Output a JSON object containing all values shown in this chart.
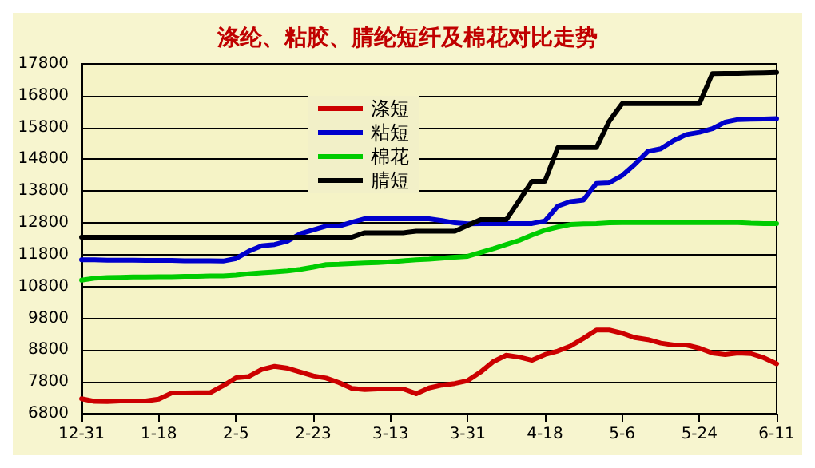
{
  "chart_data": {
    "type": "line",
    "title": "涤纶、粘胶、腈纶短纤及棉花对比走势",
    "categories": [
      "12-31",
      null,
      null,
      null,
      null,
      null,
      "1-18",
      null,
      null,
      null,
      null,
      null,
      "2-5",
      null,
      null,
      null,
      null,
      null,
      "2-23",
      null,
      null,
      null,
      null,
      null,
      "3-13",
      null,
      null,
      null,
      null,
      null,
      "3-31",
      null,
      null,
      null,
      null,
      null,
      "4-18",
      null,
      null,
      null,
      null,
      null,
      "5-6",
      null,
      null,
      null,
      null,
      null,
      "5-24",
      null,
      null,
      null,
      null,
      null,
      "6-11"
    ],
    "ylim": [
      6800,
      17800
    ],
    "yticks": [
      6800,
      7800,
      8800,
      9800,
      10800,
      11800,
      12800,
      13800,
      14800,
      15800,
      16800,
      17800
    ],
    "grid": "y",
    "legend": "top left",
    "marker": "none",
    "line_style": "solid",
    "series": [
      {
        "name": "涤短",
        "color": "#cc0000",
        "values": [
          7270,
          7190,
          7180,
          7200,
          7200,
          7200,
          7260,
          7450,
          7450,
          7460,
          7460,
          7680,
          7930,
          7970,
          8190,
          8290,
          8230,
          8110,
          7990,
          7920,
          7780,
          7600,
          7560,
          7580,
          7580,
          7580,
          7430,
          7610,
          7700,
          7750,
          7840,
          8110,
          8440,
          8640,
          8580,
          8480,
          8660,
          8770,
          8930,
          9170,
          9430,
          9430,
          9330,
          9190,
          9130,
          9020,
          8960,
          8960,
          8860,
          8710,
          8660,
          8710,
          8690,
          8560,
          8370
        ]
      },
      {
        "name": "粘短",
        "color": "#0000cc",
        "values": [
          11640,
          11640,
          11630,
          11630,
          11630,
          11620,
          11620,
          11620,
          11610,
          11610,
          11610,
          11600,
          11680,
          11910,
          12080,
          12120,
          12230,
          12460,
          12580,
          12700,
          12700,
          12820,
          12930,
          12930,
          12930,
          12930,
          12930,
          12930,
          12870,
          12800,
          12770,
          12780,
          12780,
          12780,
          12780,
          12780,
          12860,
          13330,
          13470,
          13520,
          14040,
          14060,
          14290,
          14650,
          15050,
          15130,
          15390,
          15580,
          15650,
          15760,
          15970,
          16050,
          16060,
          16070,
          16080
        ]
      },
      {
        "name": "棉花",
        "color": "#00cc00",
        "values": [
          11000,
          11060,
          11080,
          11090,
          11100,
          11100,
          11110,
          11110,
          11120,
          11120,
          11130,
          11130,
          11160,
          11200,
          11230,
          11260,
          11290,
          11340,
          11410,
          11490,
          11500,
          11520,
          11540,
          11550,
          11580,
          11610,
          11640,
          11660,
          11690,
          11720,
          11750,
          11870,
          11990,
          12120,
          12250,
          12420,
          12570,
          12670,
          12750,
          12770,
          12780,
          12800,
          12810,
          12810,
          12810,
          12810,
          12810,
          12810,
          12810,
          12810,
          12810,
          12810,
          12790,
          12780,
          12780
        ]
      },
      {
        "name": "腈短",
        "color": "#000000",
        "values": [
          12350,
          12350,
          12350,
          12350,
          12350,
          12350,
          12350,
          12350,
          12350,
          12350,
          12350,
          12350,
          12350,
          12350,
          12350,
          12350,
          12350,
          12350,
          12350,
          12350,
          12350,
          12350,
          12490,
          12490,
          12490,
          12490,
          12540,
          12540,
          12540,
          12540,
          12720,
          12900,
          12900,
          12900,
          13500,
          14110,
          14110,
          15170,
          15170,
          15170,
          15170,
          16000,
          16550,
          16550,
          16550,
          16550,
          16550,
          16550,
          16550,
          17490,
          17500,
          17500,
          17510,
          17520,
          17530
        ]
      }
    ]
  }
}
